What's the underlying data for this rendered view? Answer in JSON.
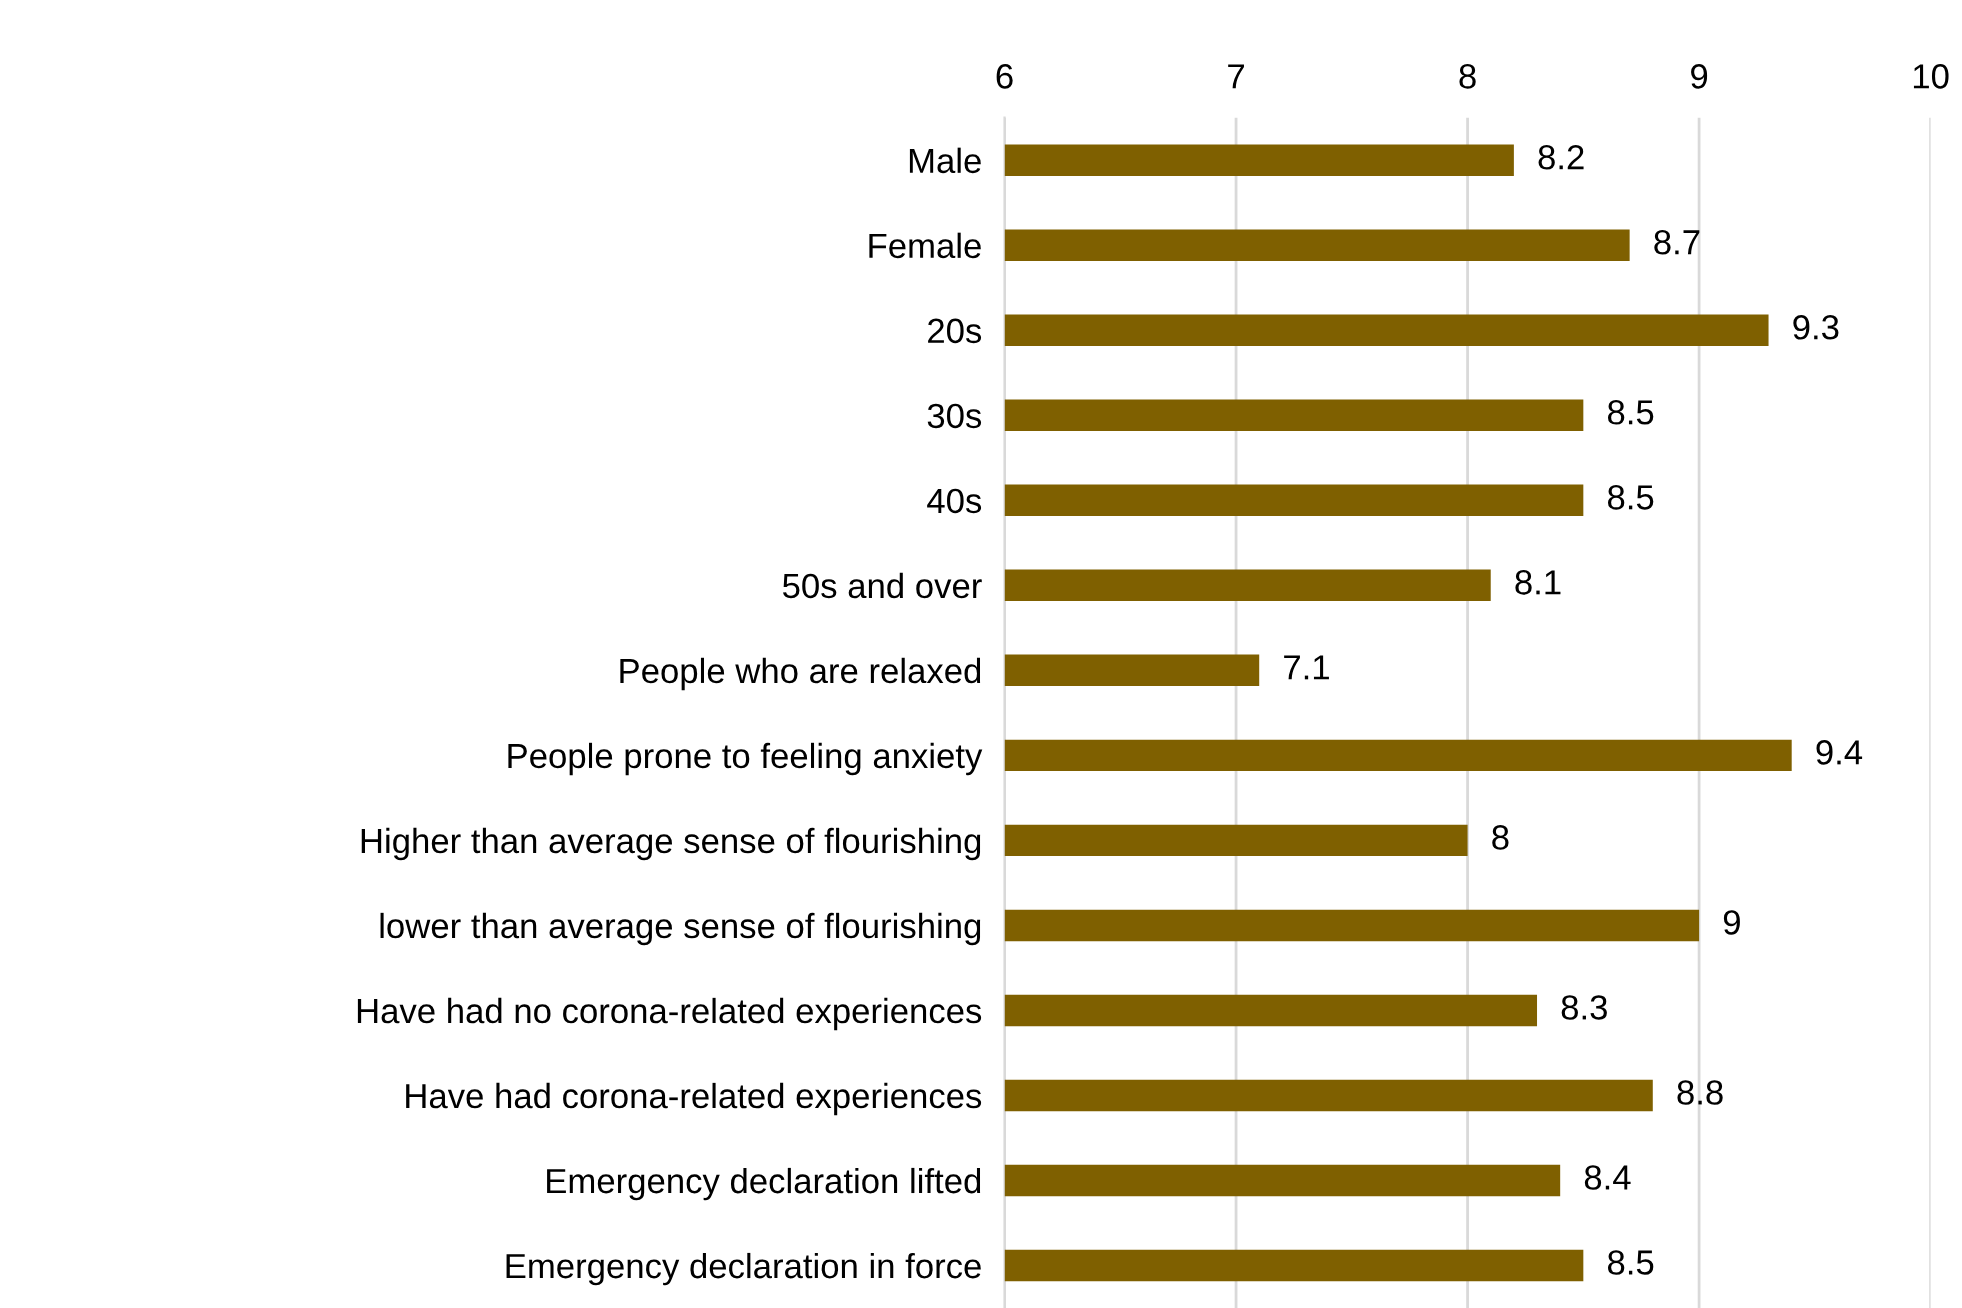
{
  "chart_data": {
    "type": "bar",
    "orientation": "horizontal",
    "categories": [
      "Male",
      "Female",
      "20s",
      "30s",
      "40s",
      "50s and over",
      "People who are relaxed",
      "People prone to feeling anxiety",
      "Higher than average sense of flourishing",
      "lower than average sense of flourishing",
      "Have had no corona-related experiences",
      "Have had corona-related experiences",
      "Emergency declaration lifted",
      "Emergency declaration in force"
    ],
    "values": [
      8.2,
      8.7,
      9.3,
      8.5,
      8.5,
      8.1,
      7.1,
      9.4,
      8,
      9,
      8.3,
      8.8,
      8.4,
      8.5
    ],
    "color": "#7f6000",
    "xlim": [
      6,
      10
    ],
    "xticks": [
      6,
      7,
      8,
      9,
      10
    ],
    "grid": "x",
    "data_labels": true
  }
}
